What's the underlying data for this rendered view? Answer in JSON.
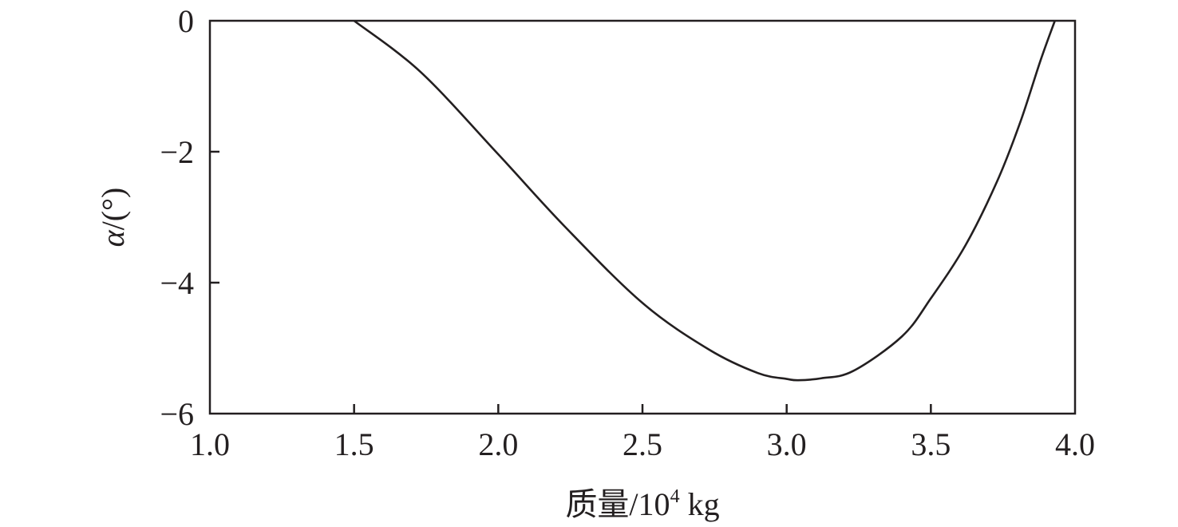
{
  "chart_data": {
    "type": "line",
    "title": "",
    "xlabel": "质量/10⁴ kg",
    "xlabel_parts": {
      "main": "质量/10",
      "sup": "4",
      "unit": " kg"
    },
    "ylabel": "α/(°)",
    "ylabel_parts": {
      "symbol": "α",
      "rest": "/(°)"
    },
    "xlim": [
      1.0,
      4.0
    ],
    "ylim": [
      -6,
      0
    ],
    "xticks": [
      1.0,
      1.5,
      2.0,
      2.5,
      3.0,
      3.5,
      4.0
    ],
    "xtick_labels": [
      "1.0",
      "1.5",
      "2.0",
      "2.5",
      "3.0",
      "3.5",
      "4.0"
    ],
    "yticks": [
      0,
      -2,
      -4,
      -6
    ],
    "ytick_labels": [
      "0",
      "−2",
      "−4",
      "−6"
    ],
    "grid": false,
    "line_color": "#231f20",
    "series": [
      {
        "x": [
          1.5,
          1.73,
          2.0,
          2.23,
          2.5,
          2.73,
          2.9,
          3.0,
          3.04,
          3.12,
          3.23,
          3.4,
          3.5,
          3.62,
          3.73,
          3.81,
          3.88,
          3.93
        ],
        "y": [
          0,
          -0.78,
          -2.04,
          -3.14,
          -4.31,
          -5.02,
          -5.38,
          -5.47,
          -5.49,
          -5.46,
          -5.35,
          -4.82,
          -4.24,
          -3.43,
          -2.45,
          -1.55,
          -0.61,
          0
        ]
      }
    ]
  }
}
